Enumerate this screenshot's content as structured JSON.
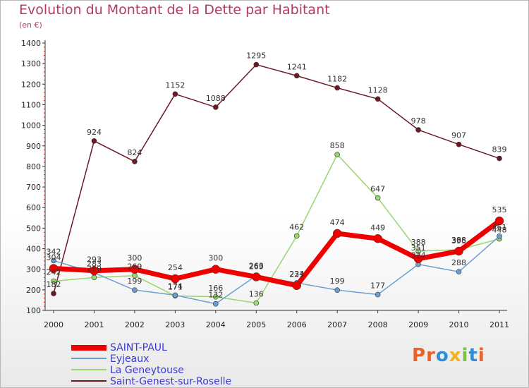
{
  "chart_data": {
    "type": "line",
    "title": "Evolution du Montant de la Dette par Habitant",
    "subtitle": "(en €)",
    "categories": [
      "2000",
      "2001",
      "2002",
      "2003",
      "2004",
      "2005",
      "2006",
      "2007",
      "2008",
      "2009",
      "2010",
      "2011"
    ],
    "y_ticks": [
      100,
      200,
      300,
      400,
      500,
      600,
      700,
      800,
      900,
      1000,
      1100,
      1200,
      1300,
      1400
    ],
    "ylim": [
      100,
      1400
    ],
    "grid": false,
    "legend_position": "bottom-left",
    "series": [
      {
        "name": "Saint-Genest-sur-Roselle",
        "color": "#6b1a24",
        "values": [
          182,
          924,
          824,
          1152,
          1088,
          1295,
          1241,
          1182,
          1128,
          978,
          907,
          839
        ]
      },
      {
        "name": "La Geneytouse",
        "color": "#99d66b",
        "values": [
          242,
          260,
          269,
          171,
          166,
          136,
          462,
          858,
          647,
          388,
          395,
          448
        ]
      },
      {
        "name": "Eyjeaux",
        "color": "#6a9fd0",
        "values": [
          342,
          283,
          199,
          174,
          132,
          269,
          234,
          199,
          177,
          324,
          288,
          461
        ]
      },
      {
        "name": "SAINT-PAUL",
        "color": "#ee0000",
        "values": [
          304,
          293,
          300,
          254,
          300,
          263,
          221,
          474,
          449,
          351,
          388,
          535
        ]
      }
    ],
    "legend": [
      "SAINT-PAUL",
      "Eyjeaux",
      "La Geneytouse",
      "Saint-Genest-sur-Roselle"
    ]
  },
  "logo": {
    "text": "Proxiti",
    "colors": [
      "#e8632a",
      "#e8632a",
      "#2d8ed8",
      "#f4b21c",
      "#7cc242",
      "#2d8ed8",
      "#e8632a"
    ]
  }
}
